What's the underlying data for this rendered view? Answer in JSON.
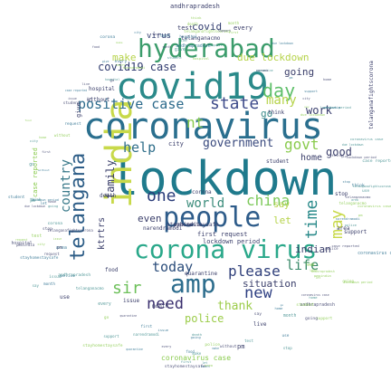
{
  "words": [
    {
      "text": "lockdown",
      "c": "#1f7a8c"
    },
    {
      "text": "coronavirus",
      "c": "#2a6f8e"
    },
    {
      "text": "covid19",
      "c": "#2b8a8a"
    },
    {
      "text": "india",
      "c": "#c8d94a"
    },
    {
      "text": "people",
      "c": "#2e5c8a"
    },
    {
      "text": "corona virus",
      "c": "#2aa88a"
    },
    {
      "text": "hyderabad",
      "c": "#3b9c6b"
    },
    {
      "text": "amp",
      "c": "#2d6d8d"
    },
    {
      "text": "telangana",
      "c": "#2d5d87"
    },
    {
      "text": "positive case",
      "c": "#2c6a8b"
    },
    {
      "text": "state",
      "c": "#3e4b8a"
    },
    {
      "text": "day",
      "c": "#5fbf6a"
    },
    {
      "text": "today",
      "c": "#2a4c7a"
    },
    {
      "text": "please",
      "c": "#2f3f7a"
    },
    {
      "text": "one",
      "c": "#2b3d7a"
    },
    {
      "text": "need",
      "c": "#3a2f6e"
    },
    {
      "text": "sir",
      "c": "#6dc05a"
    },
    {
      "text": "new",
      "c": "#2e3f82"
    },
    {
      "text": "help",
      "c": "#2f6e8a"
    },
    {
      "text": "country",
      "c": "#3a7a8a"
    },
    {
      "text": "govt",
      "c": "#8acb4e"
    },
    {
      "text": "time",
      "c": "#2a8a8a"
    },
    {
      "text": "china",
      "c": "#7dc95a"
    },
    {
      "text": "world",
      "c": "#3b8c7b"
    },
    {
      "text": "government",
      "c": "#3a4a7e"
    },
    {
      "text": "covid19 case",
      "c": "#2f3a6e"
    },
    {
      "text": "covid",
      "c": "#2f3a6e"
    },
    {
      "text": "virus",
      "c": "#2f3a6e"
    },
    {
      "text": "nt",
      "c": "#8acb4e"
    },
    {
      "text": "may",
      "c": "#c8d94a"
    },
    {
      "text": "life",
      "c": "#3a8a6a"
    },
    {
      "text": "work",
      "c": "#3b3f6e"
    },
    {
      "text": "many",
      "c": "#b6d34a"
    },
    {
      "text": "family",
      "c": "#3a3e6a"
    },
    {
      "text": "situation",
      "c": "#3a3e6a"
    },
    {
      "text": "thank",
      "c": "#9ccc4a"
    },
    {
      "text": "ktrtrs",
      "c": "#3a3e6a"
    },
    {
      "text": "even",
      "c": "#3a3e6a"
    },
    {
      "text": "indian",
      "c": "#3a3e6a"
    },
    {
      "text": "good",
      "c": "#3a3e6a"
    },
    {
      "text": "due lockdown",
      "c": "#b6d34a"
    },
    {
      "text": "make",
      "c": "#b6d34a"
    },
    {
      "text": "going",
      "c": "#3a3e6a"
    },
    {
      "text": "police",
      "c": "#9ccc4a"
    },
    {
      "text": "go",
      "c": "#3a8a8a"
    },
    {
      "text": "let",
      "c": "#b6d34a"
    },
    {
      "text": "home",
      "c": "#3a3e6a"
    },
    {
      "text": "coronavirus case",
      "c": "#8acb4e"
    },
    {
      "text": "andhrapradesh",
      "c": "#3a3e6a"
    },
    {
      "text": "test",
      "c": "#3a3e6a"
    },
    {
      "text": "every",
      "c": "#3a3e6a"
    },
    {
      "text": "stop",
      "c": "#3a3e6a"
    },
    {
      "text": "first",
      "c": "#3a3e6a"
    },
    {
      "text": "request",
      "c": "#3a3e6a"
    },
    {
      "text": "lockdown period",
      "c": "#3a3e6a"
    },
    {
      "text": "support",
      "c": "#3a3e6a"
    },
    {
      "text": "student",
      "c": "#3a3e6a"
    },
    {
      "text": "hospital",
      "c": "#3a3e6a"
    },
    {
      "text": "issue",
      "c": "#3a3e6a"
    },
    {
      "text": "month",
      "c": "#3a3e6a"
    },
    {
      "text": "think",
      "c": "#3a3e6a"
    },
    {
      "text": "pm",
      "c": "#3a3e6a"
    },
    {
      "text": "city",
      "c": "#3a3e6a"
    },
    {
      "text": "death",
      "c": "#3a3e6a"
    },
    {
      "text": "stayhomestaysafe",
      "c": "#3a3e6a"
    },
    {
      "text": "case reported",
      "c": "#8acb4e"
    },
    {
      "text": "telanganafightscorona",
      "c": "#3a3e6a"
    },
    {
      "text": "narendramodi",
      "c": "#3a3e6a"
    },
    {
      "text": "without",
      "c": "#3a3e6a"
    },
    {
      "text": "give",
      "c": "#3a3e6a"
    },
    {
      "text": "telanganacmo",
      "c": "#3a3e6a"
    },
    {
      "text": "area",
      "c": "#3a3e6a"
    },
    {
      "text": "pmoindia",
      "c": "#3a3e6a"
    },
    {
      "text": "corona",
      "c": "#3a3e6a"
    },
    {
      "text": "say",
      "c": "#b6d34a"
    },
    {
      "text": "use",
      "c": "#3a3e6a"
    },
    {
      "text": "food",
      "c": "#3a3e6a"
    },
    {
      "text": "quarantine",
      "c": "#3a3e6a"
    },
    {
      "text": "live",
      "c": "#3a3e6a"
    }
  ]
}
